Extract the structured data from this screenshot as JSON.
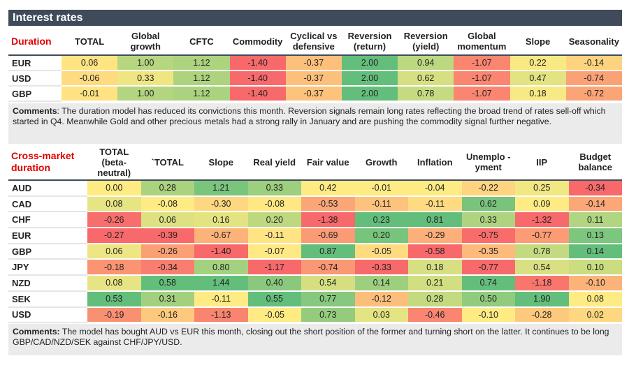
{
  "title": "Interest rates",
  "scale_colors": {
    "low": "#f8696b",
    "mid": "#ffeb84",
    "high": "#63be7b"
  },
  "duration": {
    "label": "Duration",
    "columns": [
      "TOTAL",
      "Global growth",
      "CFTC",
      "Commodity",
      "Cyclical vs defensive",
      "Reversion (return)",
      "Reversion (yield)",
      "Global momentum",
      "Slope",
      "Seasonality"
    ],
    "color_scale": "per-row",
    "rows": [
      {
        "name": "EUR",
        "values": [
          "0.06",
          "1.00",
          "1.12",
          "-1.40",
          "-0.37",
          "2.00",
          "0.94",
          "-1.07",
          "0.22",
          "-0.14"
        ]
      },
      {
        "name": "USD",
        "values": [
          "-0.06",
          "0.33",
          "1.12",
          "-1.40",
          "-0.37",
          "2.00",
          "0.62",
          "-1.07",
          "0.47",
          "-0.74"
        ]
      },
      {
        "name": "GBP",
        "values": [
          "-0.01",
          "1.00",
          "1.12",
          "-1.40",
          "-0.37",
          "2.00",
          "0.78",
          "-1.07",
          "0.18",
          "-0.72"
        ]
      }
    ],
    "comments_label": "Comments",
    "comments": ": The duration model has reduced its convictions this month. Reversion signals remain long rates reflecting the broad trend of rates sell-off which started in Q4. Meanwhile Gold and other precious metals had a strong rally in January and are pushing the commodity signal further negative."
  },
  "cross_market": {
    "label": "Cross-market duration",
    "columns": [
      "TOTAL (beta-neutral)",
      "`TOTAL",
      "Slope",
      "Real yield",
      "Fair value",
      "Growth",
      "Inflation",
      "Unemplo -yment",
      "IIP",
      "Budget balance"
    ],
    "color_scale": "per-column",
    "rows": [
      {
        "name": "AUD",
        "values": [
          "0.00",
          "0.28",
          "1.21",
          "0.33",
          "0.42",
          "-0.01",
          "-0.04",
          "-0.22",
          "0.25",
          "-0.34"
        ]
      },
      {
        "name": "CAD",
        "values": [
          "0.08",
          "-0.08",
          "-0.30",
          "-0.08",
          "-0.53",
          "-0.11",
          "-0.11",
          "0.62",
          "0.09",
          "-0.14"
        ]
      },
      {
        "name": "CHF",
        "values": [
          "-0.26",
          "0.06",
          "0.16",
          "0.20",
          "-1.38",
          "0.23",
          "0.81",
          "0.33",
          "-1.32",
          "0.11"
        ]
      },
      {
        "name": "EUR",
        "values": [
          "-0.27",
          "-0.39",
          "-0.67",
          "-0.11",
          "-0.69",
          "0.20",
          "-0.29",
          "-0.75",
          "-0.77",
          "0.13"
        ]
      },
      {
        "name": "GBP",
        "values": [
          "0.06",
          "-0.26",
          "-1.40",
          "-0.07",
          "0.87",
          "-0.05",
          "-0.58",
          "-0.35",
          "0.78",
          "0.14"
        ]
      },
      {
        "name": "JPY",
        "values": [
          "-0.18",
          "-0.34",
          "0.80",
          "-1.17",
          "-0.74",
          "-0.33",
          "0.18",
          "-0.77",
          "0.54",
          "0.10"
        ]
      },
      {
        "name": "NZD",
        "values": [
          "0.08",
          "0.58",
          "1.44",
          "0.40",
          "0.54",
          "0.14",
          "0.21",
          "0.74",
          "-1.18",
          "-0.10"
        ]
      },
      {
        "name": "SEK",
        "values": [
          "0.53",
          "0.31",
          "-0.11",
          "0.55",
          "0.77",
          "-0.12",
          "0.28",
          "0.50",
          "1.90",
          "0.08"
        ]
      },
      {
        "name": "USD",
        "values": [
          "-0.19",
          "-0.16",
          "-1.13",
          "-0.05",
          "0.73",
          "0.03",
          "-0.46",
          "-0.10",
          "-0.28",
          "0.02"
        ]
      }
    ],
    "comments_label": "Comments:",
    "comments": " The model has bought AUD vs EUR this month, closing out the short position of the former and turning short on the latter. It continues to be long GBP/CAD/NZD/SEK against CHF/JPY/USD."
  }
}
